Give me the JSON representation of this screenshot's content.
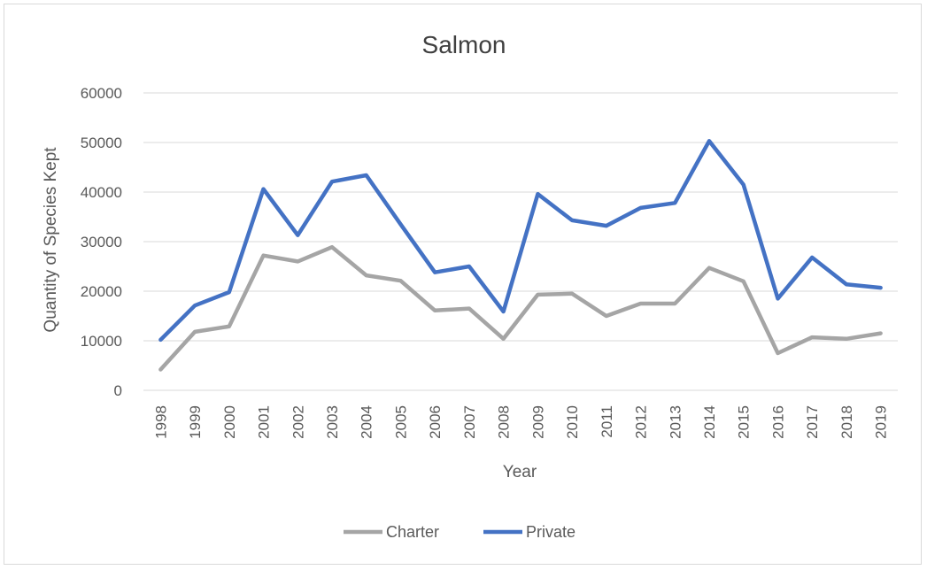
{
  "chart_data": {
    "type": "line",
    "title": "Salmon",
    "xlabel": "Year",
    "ylabel": "Quantity of Species Kept",
    "categories": [
      "1998",
      "1999",
      "2000",
      "2001",
      "2002",
      "2003",
      "2004",
      "2005",
      "2006",
      "2007",
      "2008",
      "2009",
      "2010",
      "2011",
      "2012",
      "2013",
      "2014",
      "2015",
      "2016",
      "2017",
      "2018",
      "2019"
    ],
    "ylim": [
      0,
      60000
    ],
    "yticks": [
      0,
      10000,
      20000,
      30000,
      40000,
      50000,
      60000
    ],
    "ytick_labels": [
      "0",
      "10000",
      "20000",
      "30000",
      "40000",
      "50000",
      "60000"
    ],
    "grid": true,
    "legend_position": "bottom",
    "series": [
      {
        "name": "Charter",
        "color": "#a5a5a5",
        "values": [
          4200,
          11800,
          12900,
          27200,
          26000,
          28900,
          23200,
          22100,
          16100,
          16500,
          10400,
          19300,
          19500,
          15000,
          17500,
          17500,
          24700,
          22000,
          7500,
          10700,
          10400,
          11500
        ]
      },
      {
        "name": "Private",
        "color": "#4472c4",
        "values": [
          10200,
          17100,
          19800,
          40600,
          31300,
          42100,
          43400,
          33500,
          23800,
          25000,
          15900,
          39600,
          34300,
          33200,
          36800,
          37800,
          50300,
          41500,
          18500,
          26800,
          21400,
          20700
        ]
      }
    ]
  }
}
